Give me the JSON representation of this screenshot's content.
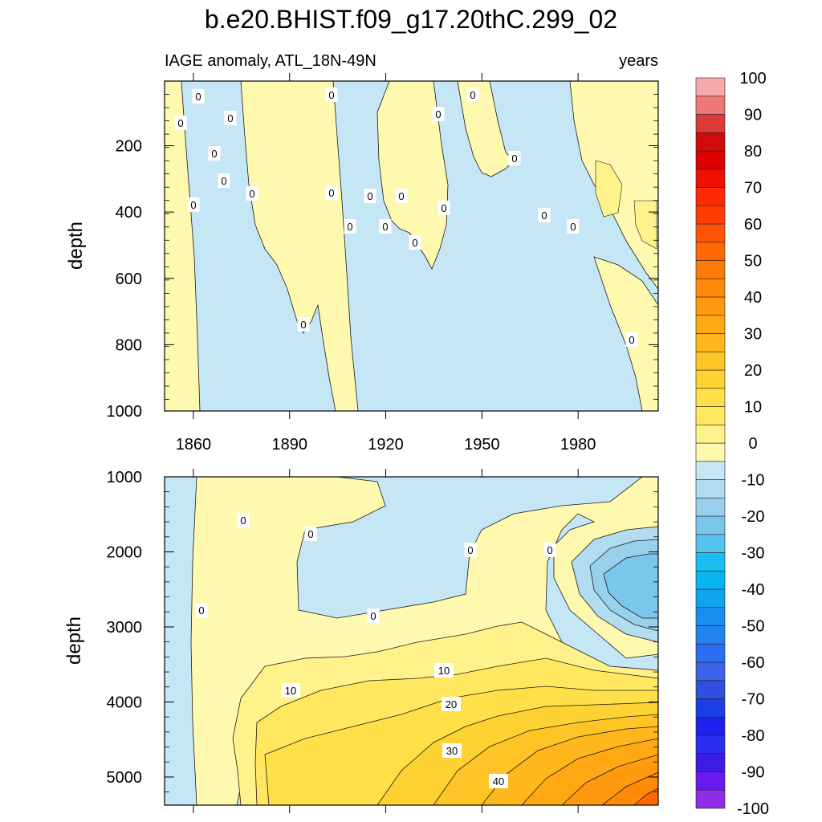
{
  "title": "b.e20.BHIST.f09_g17.20thC.299_02",
  "subtitle_left": "IAGE anomaly, ATL_18N-49N",
  "subtitle_right": "years",
  "colors": {
    "ramp": [
      "#8e2ee8",
      "#6a1af0",
      "#3f1be6",
      "#2a2ef0",
      "#1f1ff0",
      "#1a3fe6",
      "#2f4fe0",
      "#3a62e8",
      "#2c6ef2",
      "#2282f0",
      "#168ff0",
      "#10a4ef",
      "#08b3f0",
      "#18bff0",
      "#58c3ee",
      "#79c8ec",
      "#99d1ec",
      "#b2dcef",
      "#c5e6f4",
      "#fff9b0",
      "#fff28a",
      "#ffe85f",
      "#ffe048",
      "#ffd233",
      "#ffc526",
      "#ffb71c",
      "#ffa813",
      "#ff9a0f",
      "#ff8a0a",
      "#ff7a07",
      "#ff6805",
      "#ff5304",
      "#ff3d02",
      "#ff2a01",
      "#f01000",
      "#e00000",
      "#d00c0c",
      "#dd3a3a",
      "#ee7777",
      "#f7aaaa"
    ],
    "line": "#1a1a1a"
  },
  "chart_data": [
    {
      "type": "heatmap",
      "panel": "upper",
      "xlabel": "",
      "ylabel": "depth",
      "x_ticks": [
        1860,
        1890,
        1920,
        1950,
        1980
      ],
      "xlim": [
        1851,
        2005
      ],
      "y_ticks": [
        200,
        400,
        600,
        800,
        1000
      ],
      "ylim": [
        1000,
        5
      ],
      "y_reversed": true,
      "contour_labels": [
        "0",
        "0",
        "0",
        "0",
        "0",
        "0",
        "0",
        "0",
        "0",
        "0",
        "0",
        "0",
        "0",
        "0",
        "0",
        "0",
        "0",
        "0",
        "0",
        "0",
        "0",
        "0"
      ]
    },
    {
      "type": "heatmap",
      "panel": "lower",
      "xlabel": "",
      "ylabel": "depth",
      "x_ticks": [
        1860,
        1890,
        1920,
        1950,
        1980
      ],
      "xlim": [
        1851,
        2005
      ],
      "y_ticks": [
        1000,
        2000,
        3000,
        4000,
        5000
      ],
      "ylim": [
        5375,
        1000
      ],
      "y_reversed": true,
      "contour_labels": [
        "0",
        "0",
        "0",
        "0",
        "0",
        "0",
        "10",
        "10",
        "20",
        "30",
        "40"
      ]
    }
  ],
  "colorbar": {
    "labels": [
      "100",
      "90",
      "80",
      "70",
      "60",
      "50",
      "40",
      "30",
      "20",
      "10",
      "0",
      "-10",
      "-20",
      "-30",
      "-40",
      "-50",
      "-60",
      "-70",
      "-80",
      "-90",
      "-100"
    ],
    "range": [
      -100,
      100
    ],
    "step": 5
  }
}
